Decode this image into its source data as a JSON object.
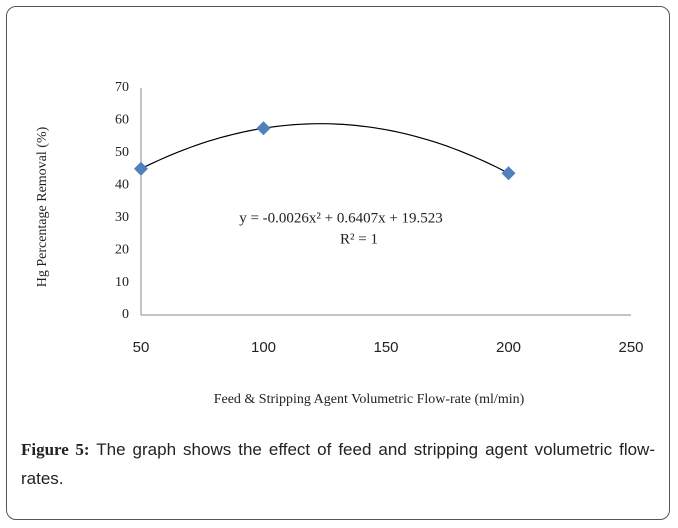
{
  "chart_data": {
    "type": "scatter",
    "xlabel": "Feed & Stripping Agent Volumetric Flow-rate (ml/min)",
    "ylabel": "Hg Percentage Removal (%)",
    "annotations": [
      "y = -0.0026x² + 0.6407x + 19.523",
      "R² = 1"
    ],
    "x": [
      50,
      100,
      200
    ],
    "values": [
      45.1,
      57.6,
      43.7
    ],
    "color": "#4f81bd",
    "trendline": "polynomial",
    "xlim": [
      50,
      250
    ],
    "xticks": [
      50,
      100,
      150,
      200,
      250
    ],
    "ylim": [
      0,
      70
    ],
    "yticks": [
      0,
      10,
      20,
      30,
      40,
      50,
      60,
      70
    ]
  },
  "caption": {
    "label": "Figure 5:",
    "text": "The graph shows the effect of feed and stripping agent volumetric flow-rates."
  }
}
